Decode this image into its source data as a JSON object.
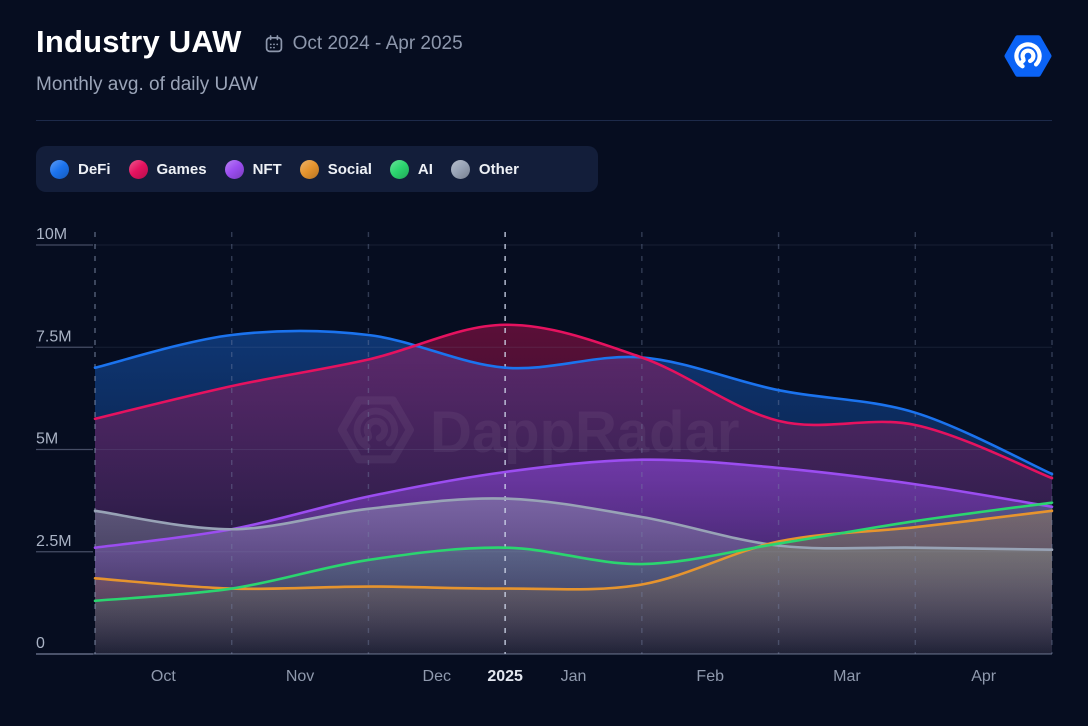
{
  "header": {
    "title": "Industry UAW",
    "period": "Oct 2024 - Apr 2025",
    "subtitle": "Monthly avg. of daily UAW"
  },
  "icons": {
    "calendar": "calendar-outline-with-dots",
    "brand": "dappradar-hexagon-radar-spiral"
  },
  "brand": {
    "name": "DappRadar",
    "logo_bg": "#0b63f6",
    "logo_glyph_color": "#ffffff"
  },
  "chart_data": {
    "type": "area",
    "title": "Industry UAW",
    "subtitle": "Monthly avg. of daily UAW",
    "period": "Oct 2024 - Apr 2025",
    "watermark": "DappRadar",
    "background": "#060d20",
    "legend_position": "top",
    "grid": {
      "horizontal": true,
      "vertical": "dashed-monthly"
    },
    "x_months": [
      "Oct",
      "Nov",
      "Dec",
      "Jan",
      "Feb",
      "Mar",
      "Apr"
    ],
    "x_year_label": "2025",
    "x_year_tick_index": 3,
    "x_points": [
      "Oct 1",
      "Nov 1",
      "Dec 1",
      "Jan 1",
      "Feb 1",
      "Mar 1",
      "Apr 1",
      "Apr 30"
    ],
    "y_ticks": [
      0,
      2.5,
      5,
      7.5,
      10
    ],
    "y_tick_labels": [
      "0",
      "2.5M",
      "5M",
      "7.5M",
      "10M"
    ],
    "ylim_m": [
      0,
      10
    ],
    "unit": "monthly average of daily Unique Active Wallets, millions",
    "series": [
      {
        "name": "DeFi",
        "color": "#1b73ee",
        "values_m": [
          7.0,
          7.8,
          7.8,
          7.0,
          7.25,
          6.45,
          5.9,
          4.4
        ]
      },
      {
        "name": "Games",
        "color": "#e5125f",
        "values_m": [
          5.75,
          6.55,
          7.2,
          8.05,
          7.25,
          5.7,
          5.6,
          4.3
        ]
      },
      {
        "name": "NFT",
        "color": "#9b4df0",
        "values_m": [
          2.6,
          3.05,
          3.85,
          4.45,
          4.75,
          4.55,
          4.15,
          3.6
        ]
      },
      {
        "name": "Social",
        "color": "#e6942e",
        "values_m": [
          1.85,
          1.6,
          1.65,
          1.6,
          1.7,
          2.75,
          3.1,
          3.5
        ]
      },
      {
        "name": "AI",
        "color": "#2bd56f",
        "values_m": [
          1.3,
          1.6,
          2.3,
          2.6,
          2.2,
          2.7,
          3.25,
          3.7
        ]
      },
      {
        "name": "Other",
        "color": "#98a3b6",
        "values_m": [
          3.5,
          3.05,
          3.55,
          3.8,
          3.35,
          2.65,
          2.6,
          2.55
        ]
      }
    ]
  }
}
